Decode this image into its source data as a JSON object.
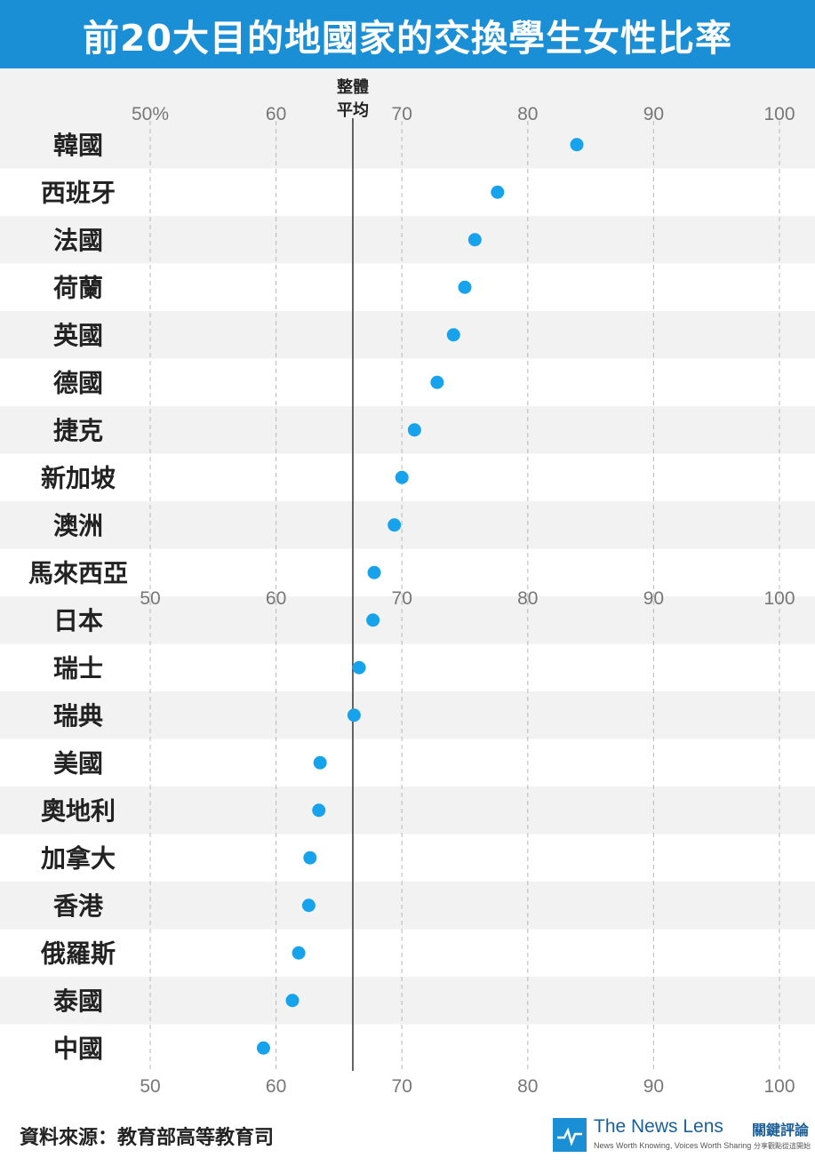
{
  "title": "前20大目的地國家的交換學生女性比率",
  "source": "資料來源：教育部高等教育司",
  "brand": {
    "name": "The News Lens",
    "name_zh": "關鍵評論",
    "tagline": "News Worth Knowing, Voices Worth Sharing",
    "tagline_zh": "分享觀點從這開始"
  },
  "colors": {
    "accent": "#1b8fd6",
    "dot": "#17a3eb",
    "band": "#f2f2f2",
    "grid": "#b8b8b8",
    "tick": "#777777"
  },
  "chart_data": {
    "type": "scatter",
    "title": "前20大目的地國家的交換學生女性比率",
    "xlim": [
      50,
      100
    ],
    "x_ticks_top": [
      "50%",
      "60",
      "70",
      "80",
      "90",
      "100"
    ],
    "x_ticks_middle": [
      "50",
      "60",
      "70",
      "80",
      "90",
      "100"
    ],
    "x_ticks_bottom": [
      "50",
      "60",
      "70",
      "80",
      "90",
      "100"
    ],
    "x_tick_values": [
      50,
      60,
      70,
      80,
      90,
      100
    ],
    "grid": "dashed vertical",
    "reference_line": {
      "label": "整體平均",
      "value": 66.1
    },
    "categories": [
      "韓國",
      "西班牙",
      "法國",
      "荷蘭",
      "英國",
      "德國",
      "捷克",
      "新加坡",
      "澳洲",
      "馬來西亞",
      "日本",
      "瑞士",
      "瑞典",
      "美國",
      "奧地利",
      "加拿大",
      "香港",
      "俄羅斯",
      "泰國",
      "中國"
    ],
    "values": [
      83.9,
      77.6,
      75.8,
      75.0,
      74.1,
      72.8,
      71.0,
      70.0,
      69.4,
      67.8,
      67.7,
      66.6,
      66.2,
      63.5,
      63.4,
      62.7,
      62.6,
      61.8,
      61.3,
      59.0
    ]
  }
}
